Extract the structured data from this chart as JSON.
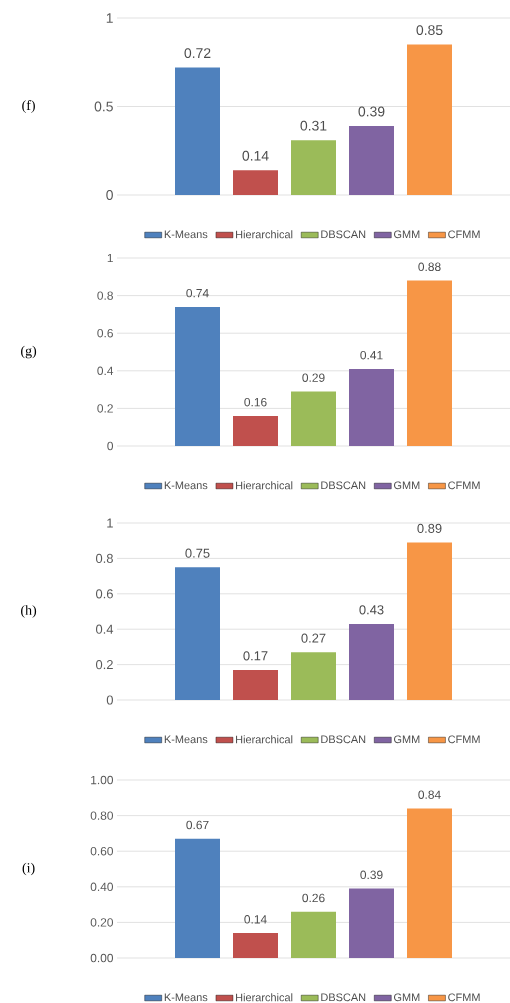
{
  "chart_data": [
    {
      "type": "bar",
      "annotations": [
        "(f)"
      ],
      "categories": [
        null
      ],
      "ylim": [
        0,
        1
      ],
      "yticks": [
        0,
        0.5,
        1
      ],
      "grid": "y",
      "legend": "bottom",
      "data_labels": true,
      "series": [
        {
          "name": "K-Means",
          "color": "#4f81bd",
          "values": [
            0.72
          ]
        },
        {
          "name": "Hierarchical",
          "color": "#c0504d",
          "values": [
            0.14
          ]
        },
        {
          "name": "DBSCAN",
          "color": "#9bbb59",
          "values": [
            0.31
          ]
        },
        {
          "name": "GMM",
          "color": "#8064a2",
          "values": [
            0.39
          ]
        },
        {
          "name": "CFMM",
          "color": "#f79646",
          "values": [
            0.85
          ]
        }
      ]
    },
    {
      "type": "bar",
      "annotations": [
        "(g)"
      ],
      "categories": [
        null
      ],
      "ylim": [
        0,
        1
      ],
      "yticks": [
        0,
        0.2,
        0.4,
        0.6,
        0.8,
        1
      ],
      "grid": "y",
      "legend": "bottom",
      "data_labels": true,
      "series": [
        {
          "name": "K-Means",
          "color": "#4f81bd",
          "values": [
            0.74
          ]
        },
        {
          "name": "Hierarchical",
          "color": "#c0504d",
          "values": [
            0.16
          ]
        },
        {
          "name": "DBSCAN",
          "color": "#9bbb59",
          "values": [
            0.29
          ]
        },
        {
          "name": "GMM",
          "color": "#8064a2",
          "values": [
            0.41
          ]
        },
        {
          "name": "CFMM",
          "color": "#f79646",
          "values": [
            0.88
          ]
        }
      ]
    },
    {
      "type": "bar",
      "annotations": [
        "(h)"
      ],
      "categories": [
        null
      ],
      "ylim": [
        0,
        1
      ],
      "yticks": [
        0,
        0.2,
        0.4,
        0.6,
        0.8,
        1
      ],
      "grid": "y",
      "legend": "bottom",
      "data_labels": true,
      "series": [
        {
          "name": "K-Means",
          "color": "#4f81bd",
          "values": [
            0.75
          ]
        },
        {
          "name": "Hierarchical",
          "color": "#c0504d",
          "values": [
            0.17
          ]
        },
        {
          "name": "DBSCAN",
          "color": "#9bbb59",
          "values": [
            0.27
          ]
        },
        {
          "name": "GMM",
          "color": "#8064a2",
          "values": [
            0.43
          ]
        },
        {
          "name": "CFMM",
          "color": "#f79646",
          "values": [
            0.89
          ]
        }
      ]
    },
    {
      "type": "bar",
      "annotations": [
        "(i)"
      ],
      "categories": [
        null
      ],
      "ylim": [
        0,
        1
      ],
      "yticks": [
        {
          "value": 0,
          "label": "0.00"
        },
        {
          "value": 0.2,
          "label": "0.20"
        },
        {
          "value": 0.4,
          "label": "0.40"
        },
        {
          "value": 0.6,
          "label": "0.60"
        },
        {
          "value": 0.8,
          "label": "0.80"
        },
        {
          "value": 1,
          "label": "1.00"
        }
      ],
      "grid": "y",
      "legend": "bottom",
      "data_labels": true,
      "series": [
        {
          "name": "K-Means",
          "color": "#4f81bd",
          "values": [
            0.67
          ]
        },
        {
          "name": "Hierarchical",
          "color": "#c0504d",
          "values": [
            0.14
          ]
        },
        {
          "name": "DBSCAN",
          "color": "#9bbb59",
          "values": [
            0.26
          ]
        },
        {
          "name": "GMM",
          "color": "#8064a2",
          "values": [
            0.39
          ]
        },
        {
          "name": "CFMM",
          "color": "#f79646",
          "values": [
            0.84
          ]
        }
      ]
    }
  ]
}
